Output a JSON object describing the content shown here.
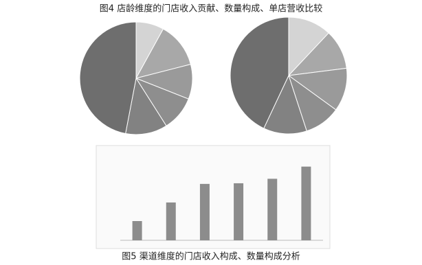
{
  "captions": [
    "图4  店龄维度的门店收入贡献、数量构成、单店营收比较",
    "图5  渠道维度的门店收入构成、数量构成分析"
  ],
  "chart_data": [
    {
      "type": "pie",
      "values": [
        8,
        13,
        10,
        10,
        12,
        47
      ],
      "colors": [
        "#d4d4d4",
        "#a8a8a8",
        "#9a9a9a",
        "#8e8e8e",
        "#828282",
        "#6e6e6e"
      ]
    },
    {
      "type": "pie",
      "values": [
        12,
        11,
        12,
        10,
        12,
        43
      ],
      "colors": [
        "#d4d4d4",
        "#a8a8a8",
        "#9a9a9a",
        "#8e8e8e",
        "#828282",
        "#6e6e6e"
      ]
    },
    {
      "type": "bar",
      "categories": [
        null,
        null,
        null,
        null,
        null,
        null
      ],
      "values": [
        30,
        59,
        88,
        89,
        96,
        115
      ],
      "color": "#8c8c8c",
      "ylim": [
        0,
        120
      ]
    }
  ]
}
